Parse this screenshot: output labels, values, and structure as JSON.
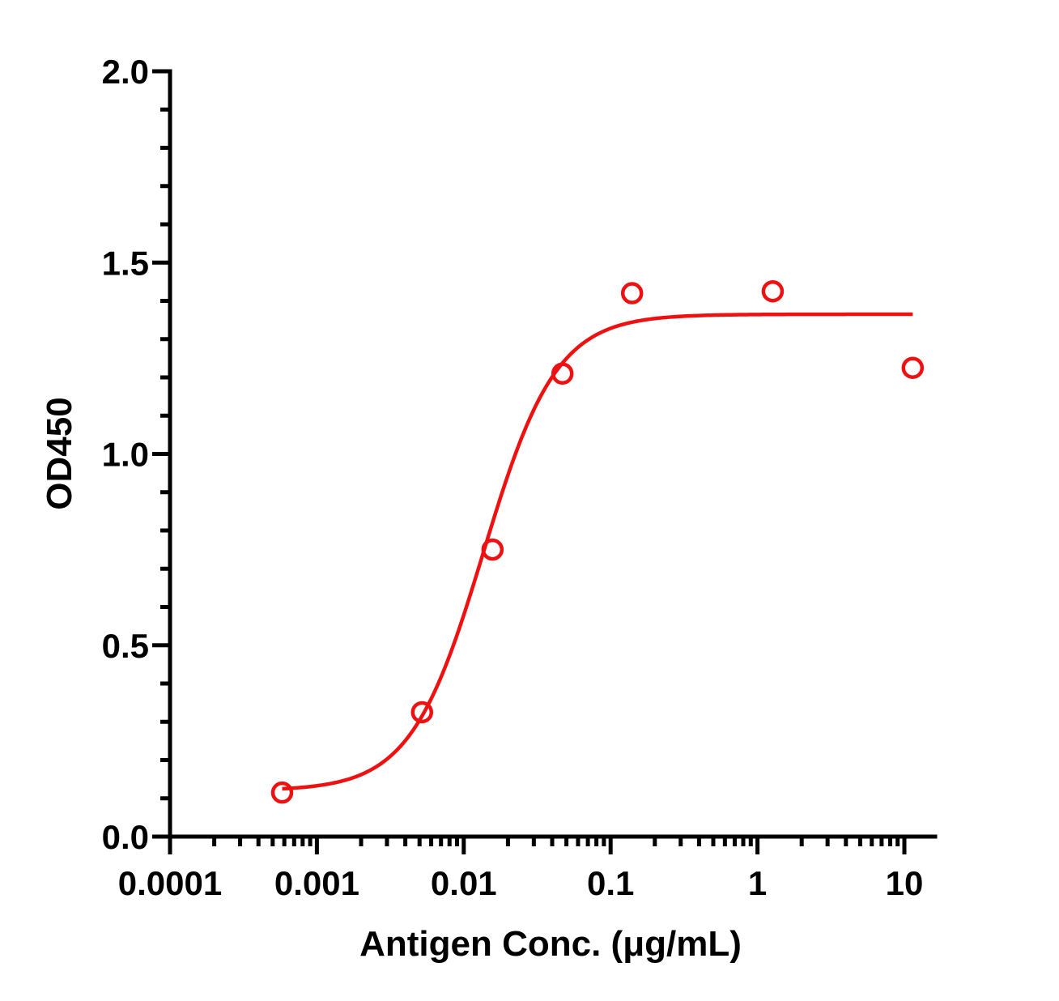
{
  "chart_data": {
    "type": "scatter",
    "title": "",
    "xlabel": "Antigen Conc. (μg/mL)",
    "ylabel": "OD450",
    "xscale": "log",
    "xlim": [
      0.0001,
      15
    ],
    "ylim": [
      0,
      2.0
    ],
    "x_tick_values": [
      0.0001,
      0.001,
      0.01,
      0.1,
      1,
      10
    ],
    "x_tick_labels": [
      "0.0001",
      "0.001",
      "0.01",
      "0.1",
      "1",
      "10"
    ],
    "y_tick_values": [
      0,
      0.5,
      1.0,
      1.5,
      2.0
    ],
    "y_tick_labels": [
      "0.0",
      "0.5",
      "1.0",
      "1.5",
      "2.0"
    ],
    "grid": false,
    "color": "#ee1111",
    "series": [
      {
        "x": [
          0.00058,
          0.0052,
          0.0157,
          0.047,
          0.14,
          1.27,
          11.4
        ],
        "y": [
          0.115,
          0.325,
          0.75,
          1.21,
          1.42,
          1.425,
          1.225
        ]
      }
    ],
    "fit": {
      "type": "4PL",
      "bottom": 0.12,
      "top": 1.365,
      "ec50": 0.0136,
      "hill": 1.75,
      "x_range": [
        0.00058,
        11.4
      ]
    }
  }
}
